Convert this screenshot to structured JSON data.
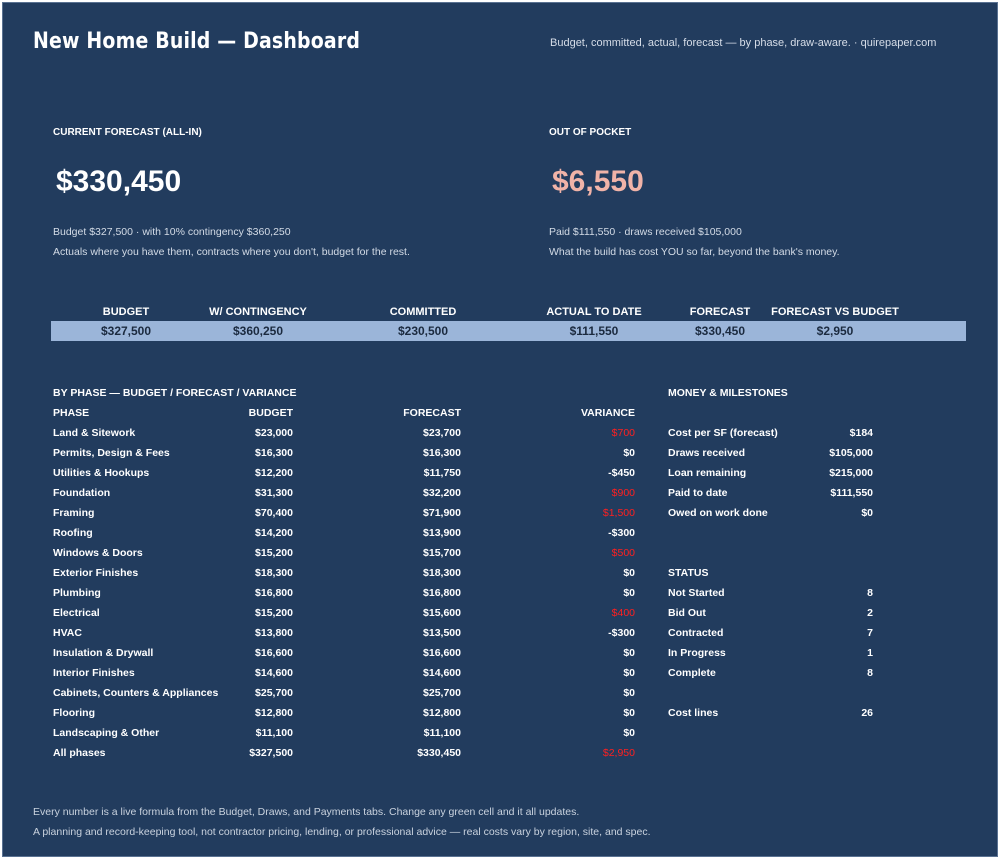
{
  "header": {
    "title": "New Home Build — Dashboard",
    "subtitle": "Budget, committed, actual, forecast — by phase, draw-aware.  ·  quirepaper.com"
  },
  "kpis": {
    "forecast": {
      "label": "CURRENT FORECAST (ALL-IN)",
      "value": "$330,450",
      "note1": "Budget $327,500  ·  with 10% contingency $360,250",
      "note2": "Actuals where you have them, contracts where you don't, budget for the rest."
    },
    "pocket": {
      "label": "OUT OF POCKET",
      "value": "$6,550",
      "note1": "Paid $111,550  ·  draws received $105,000",
      "note2": "What the build has cost YOU so far, beyond the bank's money."
    }
  },
  "summary": [
    {
      "label": "BUDGET",
      "value": "$327,500"
    },
    {
      "label": "W/ CONTINGENCY",
      "value": "$360,250"
    },
    {
      "label": "COMMITTED",
      "value": "$230,500"
    },
    {
      "label": "ACTUAL TO DATE",
      "value": "$111,550"
    },
    {
      "label": "FORECAST",
      "value": "$330,450"
    },
    {
      "label": "FORECAST VS BUDGET",
      "value": "$2,950"
    }
  ],
  "phases": {
    "title": "BY PHASE — BUDGET / FORECAST / VARIANCE",
    "columns": {
      "phase": "PHASE",
      "budget": "BUDGET",
      "forecast": "FORECAST",
      "variance": "VARIANCE"
    },
    "rows": [
      {
        "phase": "Land & Sitework",
        "budget": "$23,000",
        "forecast": "$23,700",
        "variance": "$700",
        "over": true
      },
      {
        "phase": "Permits, Design & Fees",
        "budget": "$16,300",
        "forecast": "$16,300",
        "variance": "$0",
        "over": false
      },
      {
        "phase": "Utilities & Hookups",
        "budget": "$12,200",
        "forecast": "$11,750",
        "variance": "-$450",
        "over": false
      },
      {
        "phase": "Foundation",
        "budget": "$31,300",
        "forecast": "$32,200",
        "variance": "$900",
        "over": true
      },
      {
        "phase": "Framing",
        "budget": "$70,400",
        "forecast": "$71,900",
        "variance": "$1,500",
        "over": true
      },
      {
        "phase": "Roofing",
        "budget": "$14,200",
        "forecast": "$13,900",
        "variance": "-$300",
        "over": false
      },
      {
        "phase": "Windows & Doors",
        "budget": "$15,200",
        "forecast": "$15,700",
        "variance": "$500",
        "over": true
      },
      {
        "phase": "Exterior Finishes",
        "budget": "$18,300",
        "forecast": "$18,300",
        "variance": "$0",
        "over": false
      },
      {
        "phase": "Plumbing",
        "budget": "$16,800",
        "forecast": "$16,800",
        "variance": "$0",
        "over": false
      },
      {
        "phase": "Electrical",
        "budget": "$15,200",
        "forecast": "$15,600",
        "variance": "$400",
        "over": true
      },
      {
        "phase": "HVAC",
        "budget": "$13,800",
        "forecast": "$13,500",
        "variance": "-$300",
        "over": false
      },
      {
        "phase": "Insulation & Drywall",
        "budget": "$16,600",
        "forecast": "$16,600",
        "variance": "$0",
        "over": false
      },
      {
        "phase": "Interior Finishes",
        "budget": "$14,600",
        "forecast": "$14,600",
        "variance": "$0",
        "over": false
      },
      {
        "phase": "Cabinets, Counters & Appliances",
        "budget": "$25,700",
        "forecast": "$25,700",
        "variance": "$0",
        "over": false
      },
      {
        "phase": "Flooring",
        "budget": "$12,800",
        "forecast": "$12,800",
        "variance": "$0",
        "over": false
      },
      {
        "phase": "Landscaping & Other",
        "budget": "$11,100",
        "forecast": "$11,100",
        "variance": "$0",
        "over": false
      },
      {
        "phase": "All phases",
        "budget": "$327,500",
        "forecast": "$330,450",
        "variance": "$2,950",
        "over": true
      }
    ]
  },
  "money": {
    "title": "MONEY & MILESTONES",
    "rows": [
      {
        "label": "Cost per SF (forecast)",
        "value": "$184"
      },
      {
        "label": "Draws received",
        "value": "$105,000"
      },
      {
        "label": "Loan remaining",
        "value": "$215,000"
      },
      {
        "label": "Paid to date",
        "value": "$111,550"
      },
      {
        "label": "Owed on work done",
        "value": "$0"
      }
    ]
  },
  "status": {
    "title": "STATUS",
    "rows": [
      {
        "label": "Not Started",
        "value": "8"
      },
      {
        "label": "Bid Out",
        "value": "2"
      },
      {
        "label": "Contracted",
        "value": "7"
      },
      {
        "label": "In Progress",
        "value": "1"
      },
      {
        "label": "Complete",
        "value": "8"
      }
    ],
    "cost_lines": {
      "label": "Cost lines",
      "value": "26"
    }
  },
  "footer": {
    "line1": "Every number is a live formula from the Budget, Draws, and Payments tabs. Change any green cell and it all updates.",
    "line2": "A planning and record-keeping tool, not contractor pricing, lending, or professional advice — real costs vary by region, site, and spec."
  },
  "colors": {
    "background": "#223c5e",
    "summary_bar": "#9bb5d9",
    "pocket_value": "#f0b3a8",
    "over_budget": "#ff2020"
  }
}
